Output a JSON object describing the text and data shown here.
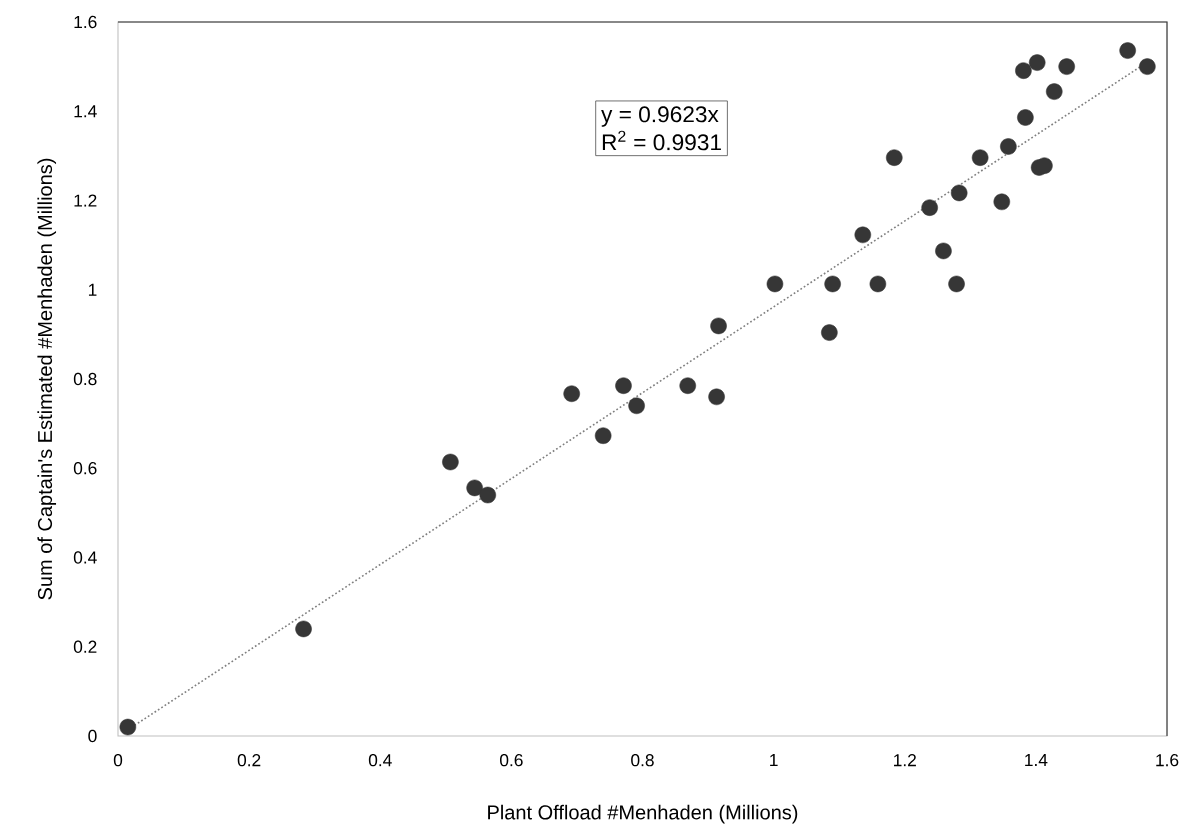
{
  "chart_data": {
    "type": "scatter",
    "xlabel": "Plant Offload #Menhaden (Millions)",
    "ylabel": "Sum of Captain's Estimated #Menhaden (Millions)",
    "xlim": [
      0,
      1.6
    ],
    "ylim": [
      0,
      1.6
    ],
    "xticks": [
      0,
      0.2,
      0.4,
      0.6,
      0.8,
      1,
      1.2,
      1.4,
      1.6
    ],
    "yticks": [
      0,
      0.2,
      0.4,
      0.6,
      0.8,
      1,
      1.2,
      1.4,
      1.6
    ],
    "marker": "circle",
    "annotations": [
      "y = 0.9623x",
      "R$^{2}$ = 0.9931"
    ],
    "series": [
      {
        "color": "#363636",
        "x": [
          0.015,
          0.283,
          0.507,
          0.544,
          0.564,
          0.692,
          0.74,
          0.771,
          0.791,
          0.869,
          0.913,
          0.916,
          1.002,
          1.085,
          1.09,
          1.136,
          1.159,
          1.184,
          1.238,
          1.259,
          1.279,
          1.283,
          1.315,
          1.348,
          1.358,
          1.381,
          1.384,
          1.402,
          1.405,
          1.413,
          1.428,
          1.447,
          1.54,
          1.57
        ],
        "values": [
          0.02,
          0.24,
          0.614,
          0.556,
          0.54,
          0.767,
          0.673,
          0.785,
          0.74,
          0.785,
          0.76,
          0.919,
          1.013,
          0.904,
          1.013,
          1.123,
          1.013,
          1.296,
          1.184,
          1.087,
          1.013,
          1.217,
          1.296,
          1.197,
          1.321,
          1.491,
          1.386,
          1.509,
          1.274,
          1.278,
          1.444,
          1.5,
          1.536,
          1.5
        ]
      },
      {
        "type": "line",
        "color": "#7f7f7f",
        "line_style": "dotted",
        "marker": "none",
        "x": [
          0.015,
          1.57
        ],
        "values": [
          0.014,
          1.51
        ]
      }
    ]
  }
}
